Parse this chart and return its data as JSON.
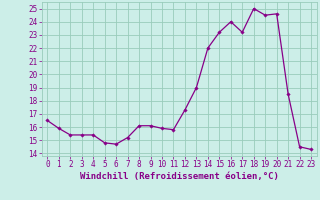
{
  "hours": [
    0,
    1,
    2,
    3,
    4,
    5,
    6,
    7,
    8,
    9,
    10,
    11,
    12,
    13,
    14,
    15,
    16,
    17,
    18,
    19,
    20,
    21,
    22,
    23
  ],
  "values": [
    16.5,
    15.9,
    15.4,
    15.4,
    15.4,
    14.8,
    14.7,
    15.2,
    16.1,
    16.1,
    15.9,
    15.8,
    17.3,
    19.0,
    22.0,
    23.2,
    24.0,
    23.2,
    25.0,
    24.5,
    24.6,
    18.5,
    14.5,
    14.3
  ],
  "line_color": "#880088",
  "marker": "D",
  "marker_size": 1.8,
  "bg_color": "#cceee8",
  "grid_color": "#99ccbb",
  "xlabel": "Windchill (Refroidissement éolien,°C)",
  "ylim": [
    13.8,
    25.5
  ],
  "xlim": [
    -0.5,
    23.5
  ],
  "yticks": [
    14,
    15,
    16,
    17,
    18,
    19,
    20,
    21,
    22,
    23,
    24,
    25
  ],
  "xticks": [
    0,
    1,
    2,
    3,
    4,
    5,
    6,
    7,
    8,
    9,
    10,
    11,
    12,
    13,
    14,
    15,
    16,
    17,
    18,
    19,
    20,
    21,
    22,
    23
  ],
  "tick_label_fontsize": 5.5,
  "xlabel_fontsize": 6.5,
  "line_width": 0.9,
  "text_color": "#880088"
}
